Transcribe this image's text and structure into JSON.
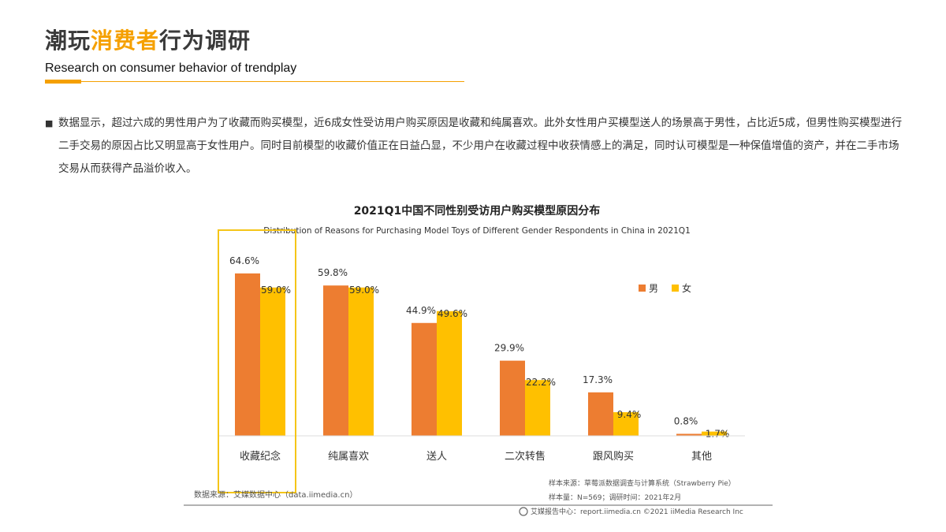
{
  "header": {
    "title_pre": "潮玩",
    "title_hl": "消费者",
    "title_post": "行为调研",
    "subtitle": "Research on consumer behavior of trendplay",
    "accent": "#f5a000"
  },
  "paragraph": "数据显示，超过六成的男性用户为了收藏而购买模型，近6成女性受访用户购买原因是收藏和纯属喜欢。此外女性用户买模型送人的场景高于男性，占比近5成，但男性购买模型进行二手交易的原因占比又明显高于女性用户。同时目前模型的收藏价值正在日益凸显，不少用户在收藏过程中收获情感上的满足，同时认可模型是一种保值增值的资产，并在二手市场交易从而获得产品溢价收入。",
  "chart_data": {
    "type": "bar",
    "title": "2021Q1中国不同性别受访用户购买模型原因分布",
    "subtitle": "Distribution of Reasons for Purchasing Model Toys of Different Gender Respondents in China in 2021Q1",
    "categories": [
      "收藏纪念",
      "纯属喜欢",
      "送人",
      "二次转售",
      "跟风购买",
      "其他"
    ],
    "series": [
      {
        "name": "男",
        "color": "#ed7d31",
        "values": [
          64.6,
          59.8,
          44.9,
          29.9,
          17.3,
          0.8
        ]
      },
      {
        "name": "女",
        "color": "#ffc000",
        "values": [
          59.0,
          59.0,
          49.6,
          22.2,
          9.4,
          1.7
        ]
      }
    ],
    "unit": "%",
    "legend": "right",
    "grid": false,
    "highlight_category": "收藏纪念",
    "highlight_color": "#f5c518"
  },
  "footer": {
    "source": "数据来源：艾媒数据中心（data.iimedia.cn）",
    "sample_source": "样本来源：草莓派数据调查与计算系统（Strawberry Pie）",
    "sample_size": "样本量：N=569；调研时间：2021年2月",
    "copyright": "艾媒报告中心：report.iimedia.cn  ©2021  iiMedia Research  Inc"
  }
}
